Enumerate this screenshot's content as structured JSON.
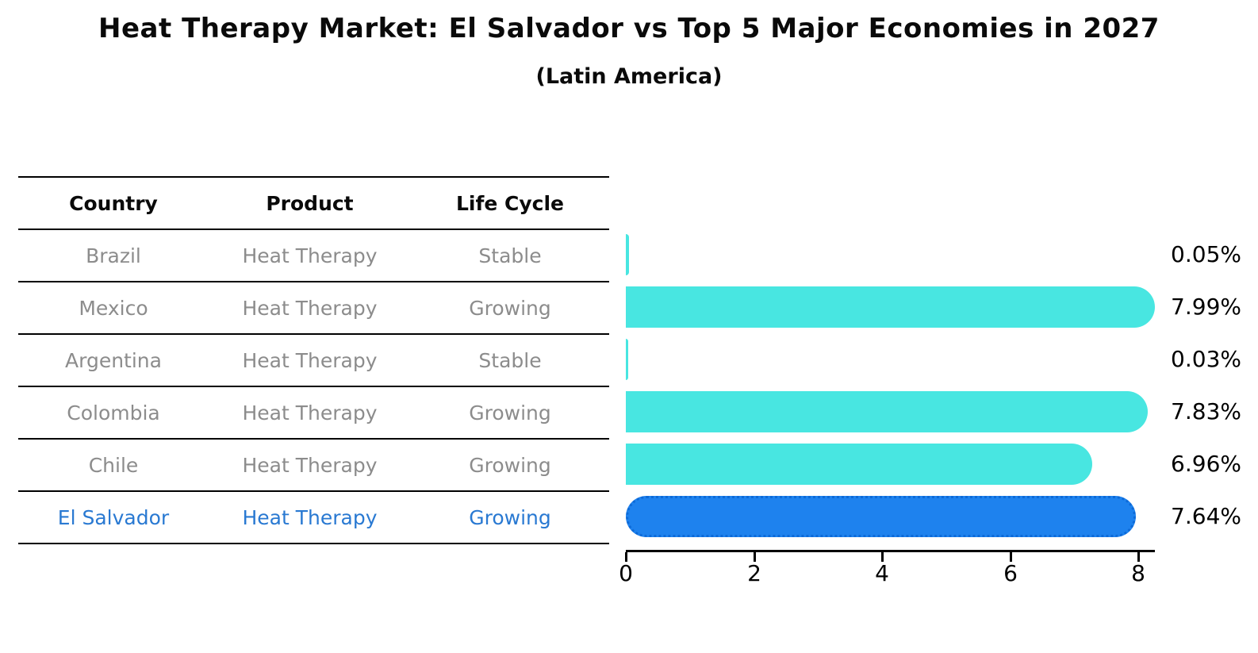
{
  "title": "Heat Therapy Market: El Salvador vs Top 5 Major Economies in 2027",
  "subtitle": "(Latin America)",
  "table": {
    "headers": [
      "Country",
      "Product",
      "Life Cycle"
    ],
    "rows": [
      {
        "country": "Brazil",
        "product": "Heat Therapy",
        "life_cycle": "Stable",
        "highlight": false
      },
      {
        "country": "Mexico",
        "product": "Heat Therapy",
        "life_cycle": "Growing",
        "highlight": false
      },
      {
        "country": "Argentina",
        "product": "Heat Therapy",
        "life_cycle": "Stable",
        "highlight": false
      },
      {
        "country": "Colombia",
        "product": "Heat Therapy",
        "life_cycle": "Growing",
        "highlight": false
      },
      {
        "country": "Chile",
        "product": "Heat Therapy",
        "life_cycle": "Growing",
        "highlight": true
      }
    ]
  },
  "chart_data": {
    "type": "bar",
    "orientation": "horizontal",
    "title": "Heat Therapy Market: El Salvador vs Top 5 Major Economies in 2027",
    "subtitle": "(Latin America)",
    "categories": [
      "Brazil",
      "Mexico",
      "Argentina",
      "Colombia",
      "Chile",
      "El Salvador"
    ],
    "values": [
      0.05,
      7.99,
      0.03,
      7.83,
      6.96,
      7.64
    ],
    "value_labels": [
      "0.05%",
      "7.99%",
      "0.03%",
      "7.83%",
      "6.96%",
      "7.64%"
    ],
    "x_ticks": [
      0,
      2,
      4,
      6,
      8
    ],
    "xlim": [
      0,
      8.26
    ],
    "grid": false,
    "highlight_index": 5,
    "bar_color": "#48E6E1",
    "highlight_bar_color": "#1E82EE",
    "highlight_bar_border_color": "#0D6AD8",
    "highlight_text_color": "#2979D2",
    "row_text_color": "#8c8c8c"
  }
}
